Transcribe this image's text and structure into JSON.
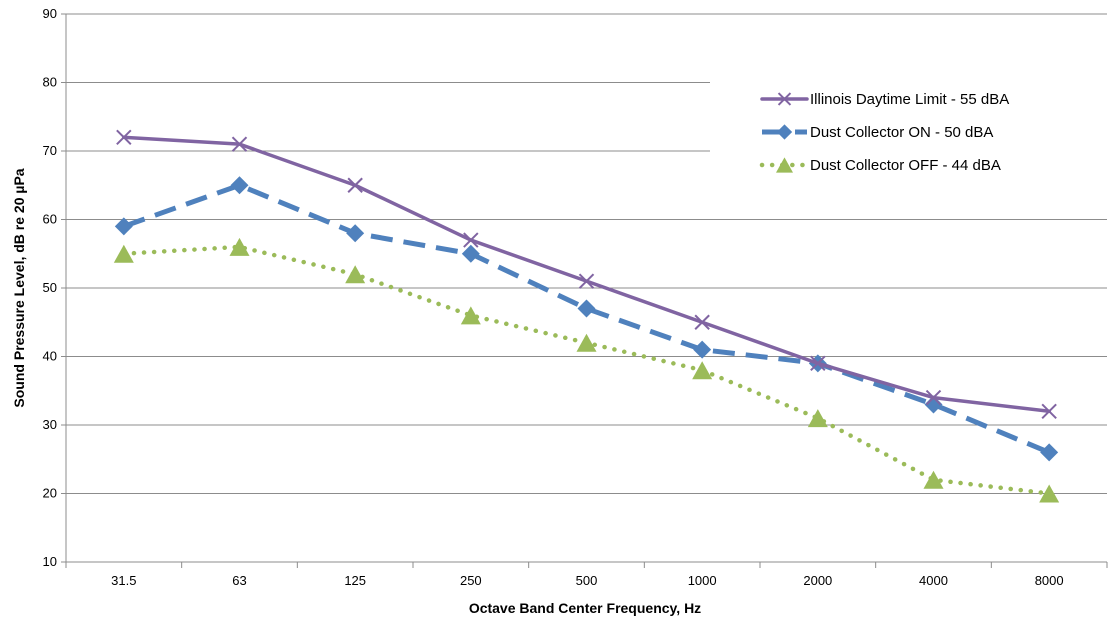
{
  "chart_data": {
    "type": "line",
    "title": "",
    "xlabel": "Octave Band Center Frequency, Hz",
    "ylabel": "Sound Pressure Level, dB re 20 µPa",
    "categories": [
      "31.5",
      "63",
      "125",
      "250",
      "500",
      "1000",
      "2000",
      "4000",
      "8000"
    ],
    "ylim": [
      10,
      90
    ],
    "yticks": [
      10,
      20,
      30,
      40,
      50,
      60,
      70,
      80,
      90
    ],
    "grid": "horizontal",
    "legend_position": "top-right",
    "series": [
      {
        "name": "Illinois Daytime Limit - 55 dBA",
        "values": [
          72,
          71,
          65,
          57,
          51,
          45,
          39,
          34,
          32
        ],
        "color": "#8064A2",
        "line_style": "solid",
        "marker": "x"
      },
      {
        "name": "Dust Collector ON - 50 dBA",
        "values": [
          59,
          65,
          58,
          55,
          47,
          41,
          39,
          33,
          26
        ],
        "color": "#4F81BD",
        "line_style": "dashed",
        "marker": "diamond"
      },
      {
        "name": "Dust Collector OFF - 44 dBA",
        "values": [
          55,
          56,
          52,
          46,
          42,
          38,
          31,
          22,
          20
        ],
        "color": "#9BBB59",
        "line_style": "dotted",
        "marker": "triangle"
      }
    ]
  }
}
